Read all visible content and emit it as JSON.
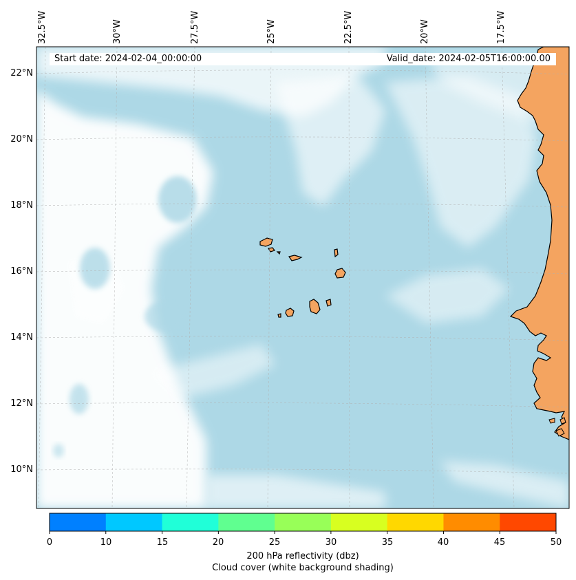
{
  "map": {
    "start_label": "Start date: 2024-02-04_00:00:00",
    "valid_label": "Valid_date: 2024-02-05T16:00:00.00",
    "lon_ticks": [
      "32.5°W",
      "30°W",
      "27.5°W",
      "25°W",
      "22.5°W",
      "20°W",
      "17.5°W"
    ],
    "lat_ticks": [
      "22°N",
      "20°N",
      "18°N",
      "16°N",
      "14°N",
      "12°N",
      "10°N"
    ],
    "colors": {
      "ocean_cloud_base": "#add8e6",
      "clear_white": "#ffffff",
      "land": "#f4a460",
      "coastline": "#000000",
      "gridline": "#b0b0b0"
    }
  },
  "colorbar": {
    "ticks": [
      "0",
      "10",
      "15",
      "20",
      "25",
      "30",
      "35",
      "40",
      "45",
      "50"
    ],
    "colors": [
      "#0080ff",
      "#00c8ff",
      "#20ffd8",
      "#60ff90",
      "#98ff58",
      "#d8ff20",
      "#ffd800",
      "#ff8c00",
      "#ff4800"
    ],
    "label_line1": "200 hPa reflectivity (dbz)",
    "label_line2": "Cloud cover (white background shading)"
  }
}
